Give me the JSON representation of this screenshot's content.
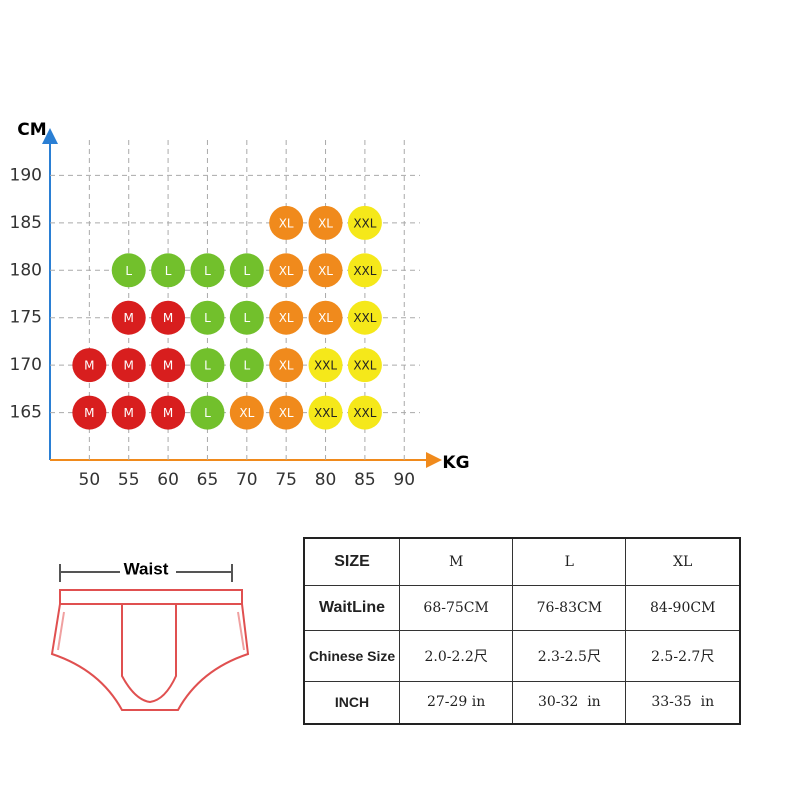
{
  "size_grid": {
    "y_label": "CM",
    "x_label": "KG",
    "xlim": [
      45,
      92
    ],
    "ylim": [
      160,
      195
    ],
    "xticks": [
      50,
      55,
      60,
      65,
      70,
      75,
      80,
      85,
      90
    ],
    "yticks": [
      165,
      170,
      175,
      180,
      185,
      190
    ],
    "colors": {
      "M": "#d81e1e",
      "L": "#72c02c",
      "XL": "#f08a1c",
      "XXL": "#f5e81a"
    },
    "cells": [
      {
        "kg": 75,
        "cm": 185,
        "size": "XL"
      },
      {
        "kg": 80,
        "cm": 185,
        "size": "XL"
      },
      {
        "kg": 85,
        "cm": 185,
        "size": "XXL"
      },
      {
        "kg": 55,
        "cm": 180,
        "size": "L"
      },
      {
        "kg": 60,
        "cm": 180,
        "size": "L"
      },
      {
        "kg": 65,
        "cm": 180,
        "size": "L"
      },
      {
        "kg": 70,
        "cm": 180,
        "size": "L"
      },
      {
        "kg": 75,
        "cm": 180,
        "size": "XL"
      },
      {
        "kg": 80,
        "cm": 180,
        "size": "XL"
      },
      {
        "kg": 85,
        "cm": 180,
        "size": "XXL"
      },
      {
        "kg": 55,
        "cm": 175,
        "size": "M"
      },
      {
        "kg": 60,
        "cm": 175,
        "size": "M"
      },
      {
        "kg": 65,
        "cm": 175,
        "size": "L"
      },
      {
        "kg": 70,
        "cm": 175,
        "size": "L"
      },
      {
        "kg": 75,
        "cm": 175,
        "size": "XL"
      },
      {
        "kg": 80,
        "cm": 175,
        "size": "XL"
      },
      {
        "kg": 85,
        "cm": 175,
        "size": "XXL"
      },
      {
        "kg": 50,
        "cm": 170,
        "size": "M"
      },
      {
        "kg": 55,
        "cm": 170,
        "size": "M"
      },
      {
        "kg": 60,
        "cm": 170,
        "size": "M"
      },
      {
        "kg": 65,
        "cm": 170,
        "size": "L"
      },
      {
        "kg": 70,
        "cm": 170,
        "size": "L"
      },
      {
        "kg": 75,
        "cm": 170,
        "size": "XL"
      },
      {
        "kg": 80,
        "cm": 170,
        "size": "XXL"
      },
      {
        "kg": 85,
        "cm": 170,
        "size": "XXL"
      },
      {
        "kg": 50,
        "cm": 165,
        "size": "M"
      },
      {
        "kg": 55,
        "cm": 165,
        "size": "M"
      },
      {
        "kg": 60,
        "cm": 165,
        "size": "M"
      },
      {
        "kg": 65,
        "cm": 165,
        "size": "L"
      },
      {
        "kg": 70,
        "cm": 165,
        "size": "XL"
      },
      {
        "kg": 75,
        "cm": 165,
        "size": "XL"
      },
      {
        "kg": 80,
        "cm": 165,
        "size": "XXL"
      },
      {
        "kg": 85,
        "cm": 165,
        "size": "XXL"
      }
    ]
  },
  "diagram": {
    "label": "Waist"
  },
  "table": {
    "header": [
      "SIZE",
      "M",
      "L",
      "XL"
    ],
    "rows": [
      [
        "WaitLine",
        "68-75CM",
        "76-83CM",
        "84-90CM"
      ],
      [
        "Chinese Size",
        "2.0-2.2尺",
        "2.3-2.5尺",
        "2.5-2.7尺"
      ],
      [
        "INCH",
        "27-29 in",
        "30-32  in",
        "33-35  in"
      ]
    ]
  }
}
